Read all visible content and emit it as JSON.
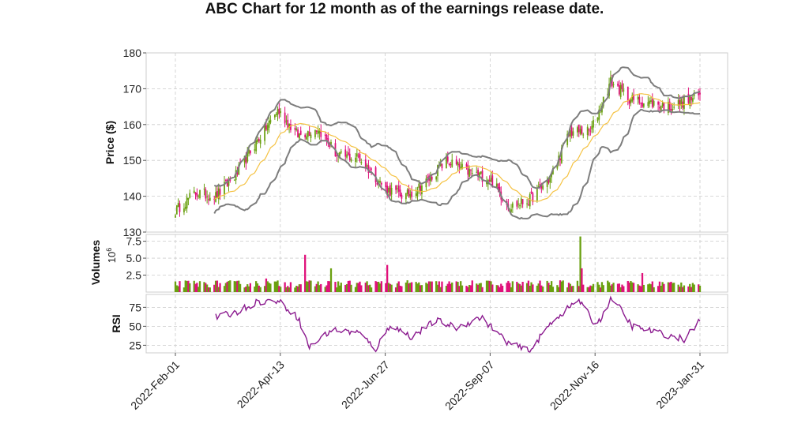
{
  "chart_data": {
    "type": "candlestick",
    "title": "ABC Chart for 12 month as of the earnings release date.",
    "colors": {
      "up": "#6aa010",
      "down": "#e0107a",
      "bollinger_band": "#7d7d7d",
      "moving_average": "#f5c242",
      "rsi": "#8b1a8f",
      "grid": "#cccccc"
    },
    "grid": true,
    "x_axis": {
      "type": "date",
      "range": [
        "2022-02-01",
        "2023-01-31"
      ],
      "tick_labels": [
        "2022-Feb-01",
        "2022-Apr-13",
        "2022-Jun-27",
        "2022-Sep-07",
        "2022-Nov-16",
        "2023-Jan-31"
      ],
      "tick_rotation_deg": 45
    },
    "panels": [
      {
        "name": "price",
        "ylabel": "Price ($)",
        "ylim": [
          130,
          180
        ],
        "ticks": [
          130,
          140,
          150,
          160,
          170,
          180
        ],
        "series_type": "candlestick with 20-day moving average and Bollinger bands",
        "close_trend": [
          {
            "date": "2022-02-01",
            "close": 136
          },
          {
            "date": "2022-02-15",
            "close": 141
          },
          {
            "date": "2022-03-01",
            "close": 140
          },
          {
            "date": "2022-03-15",
            "close": 146
          },
          {
            "date": "2022-03-29",
            "close": 155
          },
          {
            "date": "2022-04-13",
            "close": 164
          },
          {
            "date": "2022-04-27",
            "close": 157
          },
          {
            "date": "2022-05-11",
            "close": 159
          },
          {
            "date": "2022-05-25",
            "close": 151
          },
          {
            "date": "2022-06-08",
            "close": 151
          },
          {
            "date": "2022-06-27",
            "close": 142
          },
          {
            "date": "2022-07-11",
            "close": 140
          },
          {
            "date": "2022-07-25",
            "close": 144
          },
          {
            "date": "2022-08-08",
            "close": 150
          },
          {
            "date": "2022-08-22",
            "close": 147
          },
          {
            "date": "2022-09-07",
            "close": 145
          },
          {
            "date": "2022-09-21",
            "close": 137
          },
          {
            "date": "2022-10-05",
            "close": 139
          },
          {
            "date": "2022-10-19",
            "close": 145
          },
          {
            "date": "2022-11-02",
            "close": 158
          },
          {
            "date": "2022-11-16",
            "close": 158
          },
          {
            "date": "2022-11-30",
            "close": 172
          },
          {
            "date": "2022-12-14",
            "close": 167
          },
          {
            "date": "2022-12-28",
            "close": 166
          },
          {
            "date": "2023-01-11",
            "close": 165
          },
          {
            "date": "2023-01-31",
            "close": 168
          }
        ]
      },
      {
        "name": "volume",
        "ylabel": "Volumes",
        "ylabel_unit": "10^6",
        "ylim": [
          0,
          8.5
        ],
        "ticks": [
          2.5,
          5.0,
          7.5
        ],
        "tick_labels": [
          "2.5",
          "5.0",
          "7.5"
        ],
        "typical_volume": 1.2,
        "spikes": [
          {
            "date": "2022-04-05",
            "value": 2.0
          },
          {
            "date": "2022-05-02",
            "value": 5.5
          },
          {
            "date": "2022-05-20",
            "value": 3.5
          },
          {
            "date": "2022-06-28",
            "value": 4.0
          },
          {
            "date": "2022-11-09",
            "value": 8.2
          },
          {
            "date": "2022-11-10",
            "value": 3.5
          },
          {
            "date": "2022-12-22",
            "value": 2.8
          }
        ]
      },
      {
        "name": "rsi",
        "ylabel": "RSI",
        "ylim": [
          15,
          92
        ],
        "ticks": [
          25,
          50,
          75
        ],
        "trend": [
          {
            "date": "2022-03-01",
            "value": 62
          },
          {
            "date": "2022-03-15",
            "value": 68
          },
          {
            "date": "2022-03-29",
            "value": 82
          },
          {
            "date": "2022-04-13",
            "value": 84
          },
          {
            "date": "2022-04-27",
            "value": 62
          },
          {
            "date": "2022-05-05",
            "value": 22
          },
          {
            "date": "2022-05-20",
            "value": 45
          },
          {
            "date": "2022-06-08",
            "value": 42
          },
          {
            "date": "2022-06-20",
            "value": 20
          },
          {
            "date": "2022-06-30",
            "value": 52
          },
          {
            "date": "2022-07-15",
            "value": 36
          },
          {
            "date": "2022-08-01",
            "value": 58
          },
          {
            "date": "2022-08-15",
            "value": 48
          },
          {
            "date": "2022-09-01",
            "value": 62
          },
          {
            "date": "2022-09-20",
            "value": 28
          },
          {
            "date": "2022-10-05",
            "value": 17
          },
          {
            "date": "2022-10-20",
            "value": 56
          },
          {
            "date": "2022-11-08",
            "value": 85
          },
          {
            "date": "2022-11-20",
            "value": 50
          },
          {
            "date": "2022-12-01",
            "value": 88
          },
          {
            "date": "2022-12-15",
            "value": 50
          },
          {
            "date": "2023-01-01",
            "value": 42
          },
          {
            "date": "2023-01-20",
            "value": 33
          },
          {
            "date": "2023-01-31",
            "value": 57
          }
        ]
      }
    ]
  }
}
